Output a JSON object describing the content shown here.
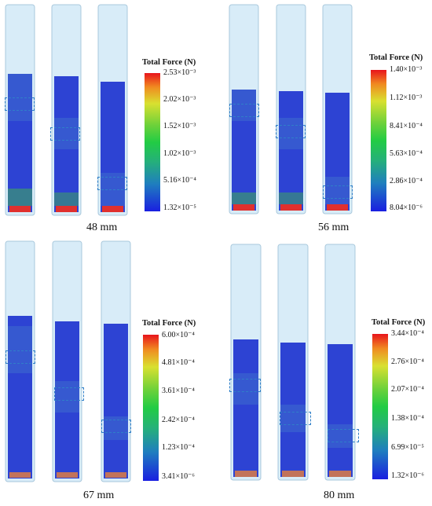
{
  "panels": [
    {
      "caption": "48 mm",
      "colorbar": {
        "title": "Total Force (N)",
        "ticks": [
          "2.53×10⁻³",
          "2.02×10⁻³",
          "1.52×10⁻³",
          "1.02×10⁻³",
          "5.16×10⁻⁴",
          "1.32×10⁻⁵"
        ]
      }
    },
    {
      "caption": "56 mm",
      "colorbar": {
        "title": "Total Force (N)",
        "ticks": [
          "1.40×10⁻³",
          "1.12×10⁻³",
          "8.41×10⁻⁴",
          "5.63×10⁻⁴",
          "2.86×10⁻⁴",
          "8.04×10⁻⁶"
        ]
      }
    },
    {
      "caption": "67 mm",
      "colorbar": {
        "title": "Total Force (N)",
        "ticks": [
          "6.00×10⁻⁴",
          "4.81×10⁻⁴",
          "3.61×10⁻⁴",
          "2.42×10⁻⁴",
          "1.23×10⁻⁴",
          "3.41×10⁻⁶"
        ]
      }
    },
    {
      "caption": "80 mm",
      "colorbar": {
        "title": "Total Force (N)",
        "ticks": [
          "3.44×10⁻⁴",
          "2.76×10⁻⁴",
          "2.07×10⁻⁴",
          "1.38×10⁻⁴",
          "6.99×10⁻⁵",
          "1.32×10⁻⁶"
        ]
      }
    }
  ],
  "colors": {
    "particles": "#2b3fd6",
    "particles_hot": "#37c84a",
    "tube": "#cfe6f5",
    "dashed_box": "#2f7fc8"
  }
}
